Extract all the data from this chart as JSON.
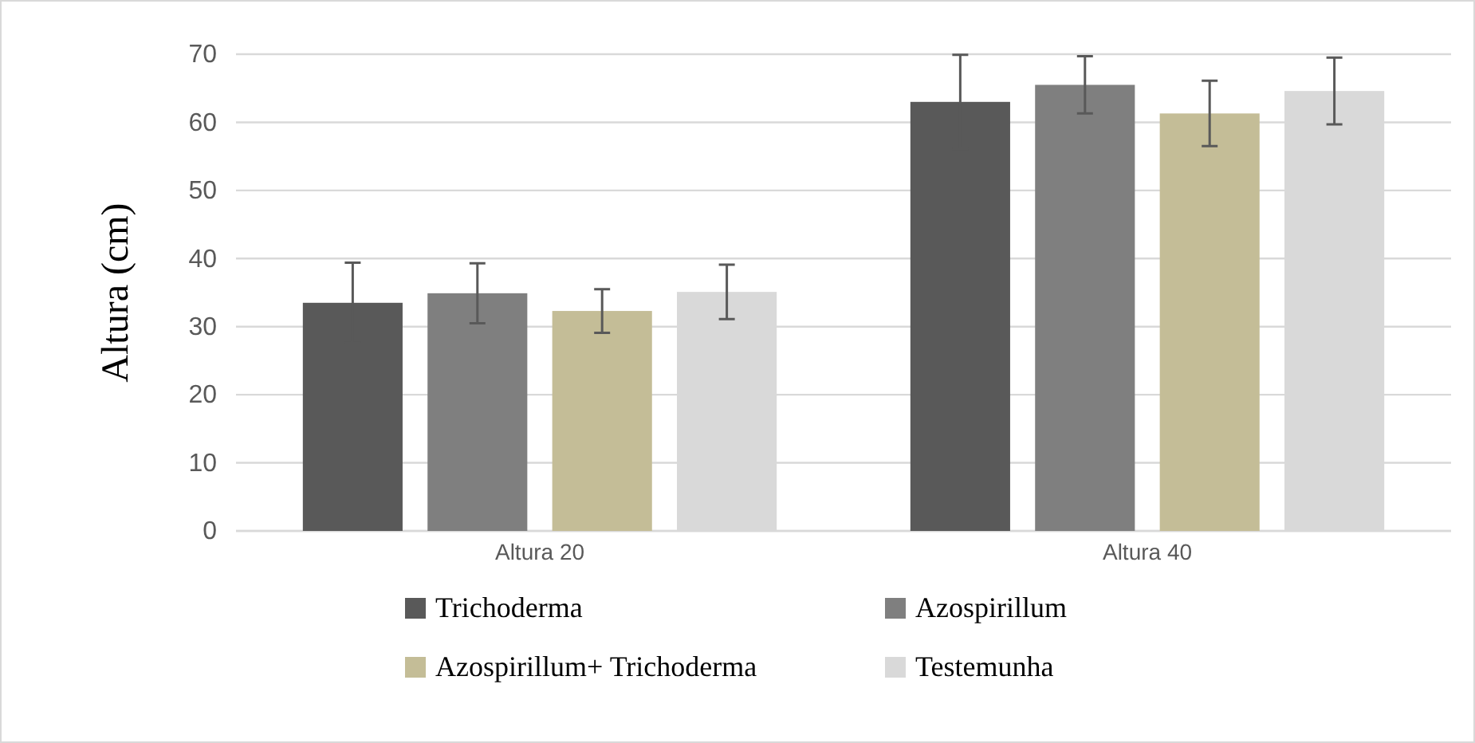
{
  "chart_data": {
    "type": "bar",
    "ylabel": "Altura (cm)",
    "categories": [
      "Altura 20",
      "Altura 40"
    ],
    "series": [
      {
        "name": "Trichoderma",
        "color": "#595959",
        "values": [
          33.5,
          63.0
        ],
        "errors": [
          5.9,
          6.9
        ]
      },
      {
        "name": "Azospirillum",
        "color": "#7f7f7f",
        "values": [
          34.9,
          65.5
        ],
        "errors": [
          4.4,
          4.2
        ]
      },
      {
        "name": "Azospirillum+ Trichoderma",
        "color": "#c4bd97",
        "values": [
          32.3,
          61.3
        ],
        "errors": [
          3.2,
          4.8
        ]
      },
      {
        "name": "Testemunha",
        "color": "#d9d9d9",
        "values": [
          35.1,
          64.6
        ],
        "errors": [
          4.0,
          4.9
        ]
      }
    ],
    "ylim": [
      0,
      70
    ],
    "yticks": [
      0,
      10,
      20,
      30,
      40,
      50,
      60,
      70
    ],
    "grid": "y",
    "legend": "bottom"
  }
}
